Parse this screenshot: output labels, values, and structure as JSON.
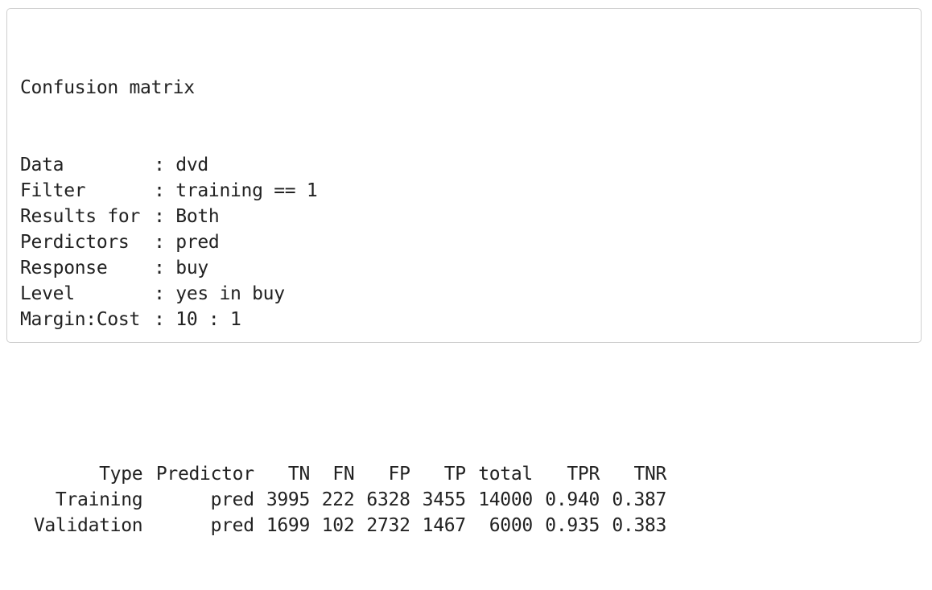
{
  "title": "Confusion matrix",
  "meta": [
    {
      "label": "Data",
      "value": "dvd"
    },
    {
      "label": "Filter",
      "value": "training == 1"
    },
    {
      "label": "Results for",
      "value": "Both"
    },
    {
      "label": "Perdictors",
      "value": "pred"
    },
    {
      "label": "Response",
      "value": "buy"
    },
    {
      "label": "Level",
      "value": "yes in buy"
    },
    {
      "label": "Margin:Cost",
      "value": "10 : 1"
    }
  ],
  "table": {
    "columns": [
      "Type",
      "Predictor",
      "TN",
      "FN",
      "FP",
      "TP",
      "total",
      "TPR",
      "TNR"
    ],
    "rows": [
      [
        "Training",
        "pred",
        "3995",
        "222",
        "6328",
        "3455",
        "14000",
        "0.940",
        "0.387"
      ],
      [
        "Validation",
        "pred",
        "1699",
        "102",
        "2732",
        "1467",
        "6000",
        "0.935",
        "0.383"
      ]
    ]
  }
}
